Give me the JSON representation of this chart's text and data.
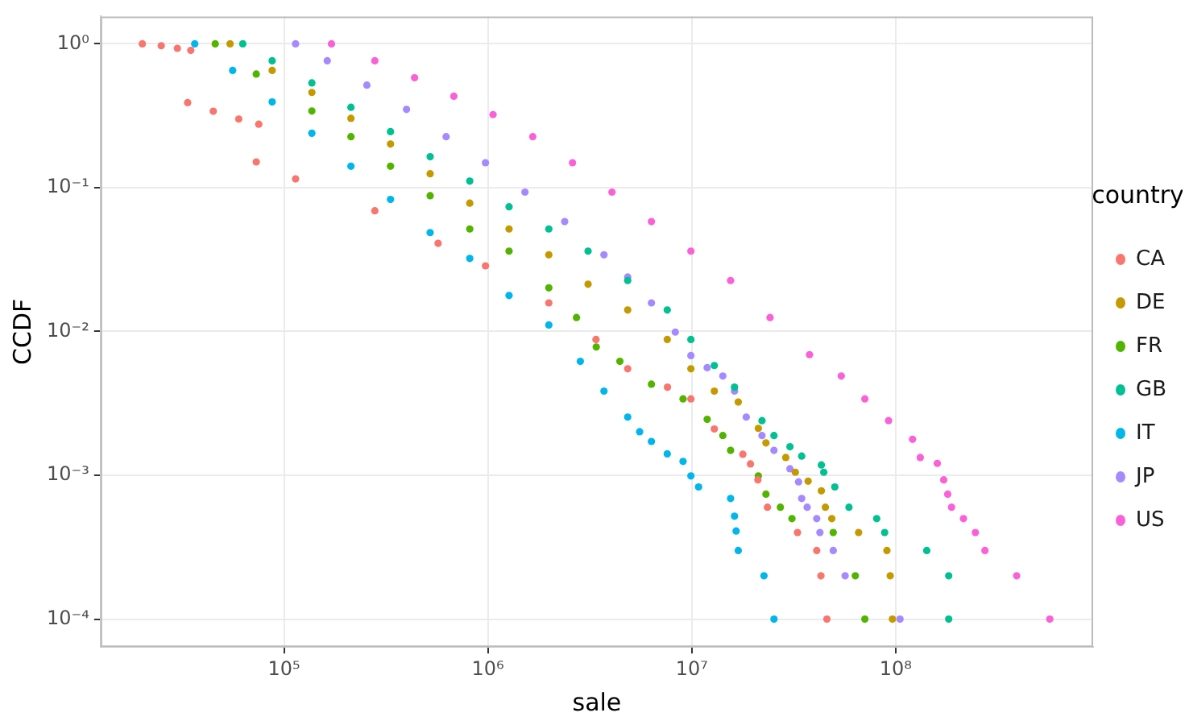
{
  "chart_data": {
    "type": "scatter",
    "xlabel": "sale",
    "ylabel": "CCDF",
    "legend_title": "country",
    "legend": "right",
    "grid": true,
    "marker": "circle",
    "log": "xy",
    "xlim": [
      12600,
      930000000
    ],
    "ylim": [
      6.4e-05,
      1.55
    ],
    "xticks": [
      {
        "value": 100000,
        "label": "10⁵"
      },
      {
        "value": 1000000,
        "label": "10⁶"
      },
      {
        "value": 10000000,
        "label": "10⁷"
      },
      {
        "value": 100000000,
        "label": "10⁸"
      }
    ],
    "yticks": [
      {
        "value": 0.0001,
        "label": "10⁻⁴"
      },
      {
        "value": 0.001,
        "label": "10⁻³"
      },
      {
        "value": 0.01,
        "label": "10⁻²"
      },
      {
        "value": 0.1,
        "label": "10⁻¹"
      },
      {
        "value": 1,
        "label": "10⁰"
      }
    ],
    "series": [
      {
        "name": "CA",
        "color": "#f8766d",
        "x": [
          20200,
          25000,
          30000,
          34900,
          33700,
          45000,
          60000,
          75200,
          73100,
          114000,
          279000,
          570000,
          973000,
          1990000,
          3390000,
          4850000,
          7600000,
          9900000,
          12900000,
          17800000,
          19400000,
          21100000,
          23500000,
          33000000,
          41000000,
          43000000,
          46000000
        ],
        "values": [
          1,
          0.97,
          0.93,
          0.9,
          0.39,
          0.34,
          0.3,
          0.276,
          0.151,
          0.115,
          0.069,
          0.041,
          0.0286,
          0.0158,
          0.0088,
          0.0055,
          0.0041,
          0.0034,
          0.0021,
          0.0014,
          0.0012,
          0.00093,
          0.0006,
          0.0004,
          0.0003,
          0.0002,
          0.0001
        ]
      },
      {
        "name": "DE",
        "color": "#c49a00",
        "x": [
          54400,
          87500,
          137000,
          213000,
          333000,
          521000,
          815000,
          1270000,
          1990000,
          3100000,
          4850000,
          7580000,
          9900000,
          12900000,
          16900000,
          21200000,
          23100000,
          28900000,
          32200000,
          37200000,
          43200000,
          45200000,
          48600000,
          65800000,
          90600000,
          94000000,
          96400000
        ],
        "values": [
          1,
          0.653,
          0.459,
          0.303,
          0.201,
          0.125,
          0.078,
          0.0516,
          0.0341,
          0.0213,
          0.0141,
          0.0088,
          0.0055,
          0.00385,
          0.00323,
          0.00212,
          0.00168,
          0.00133,
          0.00105,
          0.00091,
          0.00078,
          0.0006,
          0.0005,
          0.0004,
          0.0003,
          0.0002,
          0.0001
        ]
      },
      {
        "name": "FR",
        "color": "#53b400",
        "x": [
          46000,
          73100,
          137000,
          213000,
          333000,
          521000,
          815000,
          1270000,
          1990000,
          2720000,
          3400000,
          4440000,
          6340000,
          9060000,
          11900000,
          14200000,
          15500000,
          21200000,
          23100000,
          27200000,
          31000000,
          49400000,
          63400000,
          70600000
        ],
        "values": [
          1,
          0.616,
          0.341,
          0.226,
          0.141,
          0.0879,
          0.0516,
          0.0362,
          0.0201,
          0.0125,
          0.0078,
          0.0062,
          0.0043,
          0.0034,
          0.00245,
          0.00189,
          0.00149,
          0.00099,
          0.00074,
          0.0006,
          0.0005,
          0.0004,
          0.0002,
          0.0001
        ]
      },
      {
        "name": "GB",
        "color": "#00c094",
        "x": [
          62800,
          87500,
          137000,
          213000,
          333000,
          521000,
          815000,
          1270000,
          1990000,
          3100000,
          4850000,
          7580000,
          9900000,
          12900000,
          16200000,
          22100000,
          25300000,
          30300000,
          34600000,
          43200000,
          44400000,
          50300000,
          59000000,
          80700000,
          88300000,
          142000000,
          182000000,
          182000000
        ],
        "values": [
          1,
          0.762,
          0.535,
          0.362,
          0.245,
          0.164,
          0.111,
          0.0736,
          0.0516,
          0.0362,
          0.0226,
          0.0141,
          0.0088,
          0.0058,
          0.0041,
          0.0024,
          0.00189,
          0.00158,
          0.00136,
          0.00118,
          0.00105,
          0.00083,
          0.0006,
          0.0005,
          0.0004,
          0.0003,
          0.0002,
          0.0001
        ]
      },
      {
        "name": "IT",
        "color": "#00b6eb",
        "x": [
          36500,
          56000,
          87500,
          137000,
          213000,
          333000,
          521000,
          815000,
          1270000,
          1990000,
          2840000,
          3710000,
          4850000,
          5550000,
          6340000,
          7580000,
          9060000,
          9900000,
          10800000,
          15500000,
          16200000,
          16500000,
          16900000,
          22600000,
          25300000
        ],
        "values": [
          1,
          0.653,
          0.394,
          0.239,
          0.141,
          0.0828,
          0.0487,
          0.0322,
          0.0178,
          0.0111,
          0.0062,
          0.00385,
          0.00254,
          0.00201,
          0.00172,
          0.00141,
          0.00125,
          0.00099,
          0.00083,
          0.00069,
          0.00052,
          0.00041,
          0.0003,
          0.0002,
          0.0001
        ]
      },
      {
        "name": "JP",
        "color": "#a58aff",
        "x": [
          114000,
          163000,
          255000,
          399000,
          624000,
          973000,
          1520000,
          2380000,
          3710000,
          4850000,
          6340000,
          8300000,
          9900000,
          11900000,
          14200000,
          16200000,
          18500000,
          22100000,
          25300000,
          30300000,
          33400000,
          34600000,
          36800000,
          41000000,
          42500000,
          49400000,
          56500000,
          105000000
        ],
        "values": [
          1,
          0.762,
          0.516,
          0.35,
          0.226,
          0.149,
          0.0931,
          0.0581,
          0.0341,
          0.0239,
          0.0158,
          0.0099,
          0.0068,
          0.0056,
          0.0049,
          0.00385,
          0.00254,
          0.00189,
          0.00149,
          0.00111,
          0.0009,
          0.00069,
          0.0006,
          0.0005,
          0.0004,
          0.0003,
          0.0002,
          0.0001
        ]
      },
      {
        "name": "US",
        "color": "#fb61d7",
        "x": [
          171000,
          279000,
          437000,
          681000,
          1060000,
          1660000,
          2600000,
          4060000,
          6340000,
          9900000,
          15500000,
          24200000,
          37800000,
          54100000,
          70600000,
          92300000,
          121000000,
          132000000,
          160000000,
          172000000,
          180000000,
          188000000,
          215000000,
          246000000,
          274000000,
          392000000,
          570000000
        ],
        "values": [
          1,
          0.762,
          0.581,
          0.432,
          0.322,
          0.226,
          0.149,
          0.0931,
          0.0581,
          0.0362,
          0.0226,
          0.0125,
          0.0069,
          0.0049,
          0.0034,
          0.0024,
          0.00178,
          0.00133,
          0.00121,
          0.00093,
          0.00074,
          0.0006,
          0.0005,
          0.0004,
          0.0003,
          0.0002,
          0.0001
        ]
      }
    ]
  }
}
